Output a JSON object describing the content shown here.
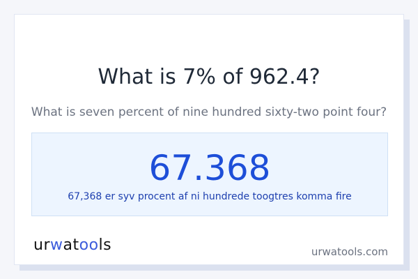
{
  "question": "What is 7% of 962.4?",
  "question_words": "What is seven percent of nine hundred sixty-two point four?",
  "result": {
    "value": "67.368",
    "words": "67,368 er syv procent af ni hundrede toogtres komma fire"
  },
  "footer": {
    "logo": {
      "part1": "ur",
      "part2": "w",
      "part3": "at",
      "part4": "oo",
      "part5": "ls"
    },
    "site": "urwatools.com"
  },
  "colors": {
    "accent": "#1d4ed8",
    "logo_accent": "#3b5bdb"
  }
}
